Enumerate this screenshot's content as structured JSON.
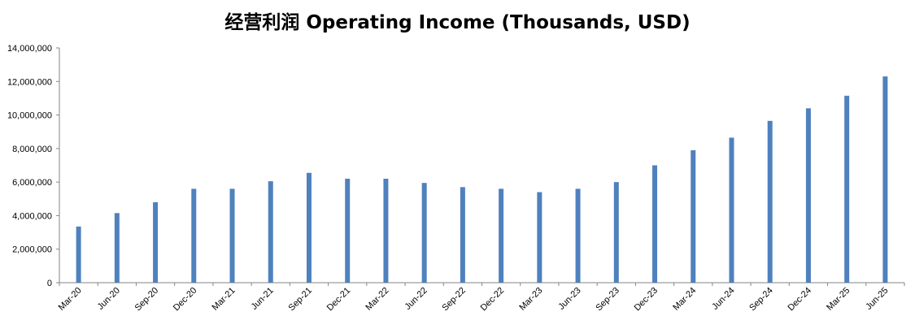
{
  "chart_data": {
    "type": "bar",
    "title": "经营利润 Operating Income (Thousands, USD)",
    "xlabel": "",
    "ylabel": "",
    "ylim": [
      0,
      14000000
    ],
    "y_ticks": [
      "0",
      "2,000,000",
      "4,000,000",
      "6,000,000",
      "8,000,000",
      "10,000,000",
      "12,000,000",
      "14,000,000"
    ],
    "grid": false,
    "bar_color": "#4f81bd",
    "categories": [
      "Mar-20",
      "Jun-20",
      "Sep-20",
      "Dec-20",
      "Mar-21",
      "Jun-21",
      "Sep-21",
      "Dec-21",
      "Mar-22",
      "Jun-22",
      "Sep-22",
      "Dec-22",
      "Mar-23",
      "Jun-23",
      "Sep-23",
      "Dec-23",
      "Mar-24",
      "Jun-24",
      "Sep-24",
      "Dec-24",
      "Mar-25",
      "Jun-25"
    ],
    "values": [
      3350000,
      4150000,
      4800000,
      5600000,
      5600000,
      6050000,
      6550000,
      6200000,
      6200000,
      5950000,
      5700000,
      5600000,
      5400000,
      5600000,
      6000000,
      7000000,
      7900000,
      8650000,
      9650000,
      10400000,
      11150000,
      12300000
    ]
  }
}
